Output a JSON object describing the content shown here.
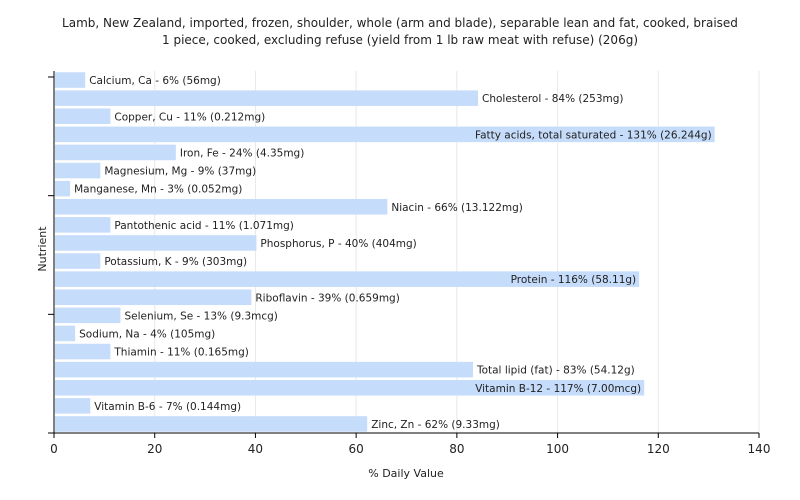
{
  "chart_data": {
    "type": "bar",
    "orientation": "horizontal",
    "title": "Lamb, New Zealand, imported, frozen, shoulder, whole (arm and blade), separable lean and fat, cooked, braised",
    "subtitle": "1 piece, cooked, excluding refuse (yield from 1 lb raw meat with refuse) (206g)",
    "xlabel": "% Daily Value",
    "ylabel": "Nutrient",
    "xlim": [
      0,
      140
    ],
    "xticks": [
      0,
      20,
      40,
      60,
      80,
      100,
      120,
      140
    ],
    "grid": true,
    "colors": {
      "bar": "#c6dcfb",
      "grid": "#e8e8e8",
      "axis": "#000000"
    },
    "categories": [
      "Calcium, Ca - 6% (56mg)",
      "Cholesterol - 84% (253mg)",
      "Copper, Cu - 11% (0.212mg)",
      "Fatty acids, total saturated - 131% (26.244g)",
      "Iron, Fe - 24% (4.35mg)",
      "Magnesium, Mg - 9% (37mg)",
      "Manganese, Mn - 3% (0.052mg)",
      "Niacin - 66% (13.122mg)",
      "Pantothenic acid - 11% (1.071mg)",
      "Phosphorus, P - 40% (404mg)",
      "Potassium, K - 9% (303mg)",
      "Protein - 116% (58.11g)",
      "Riboflavin - 39% (0.659mg)",
      "Selenium, Se - 13% (9.3mcg)",
      "Sodium, Na - 4% (105mg)",
      "Thiamin - 11% (0.165mg)",
      "Total lipid (fat) - 83% (54.12g)",
      "Vitamin B-12 - 117% (7.00mcg)",
      "Vitamin B-6 - 7% (0.144mg)",
      "Zinc, Zn - 62% (9.33mg)"
    ],
    "values": [
      6,
      84,
      11,
      131,
      24,
      9,
      3,
      66,
      11,
      40,
      9,
      116,
      39,
      13,
      4,
      11,
      83,
      117,
      7,
      62
    ]
  }
}
